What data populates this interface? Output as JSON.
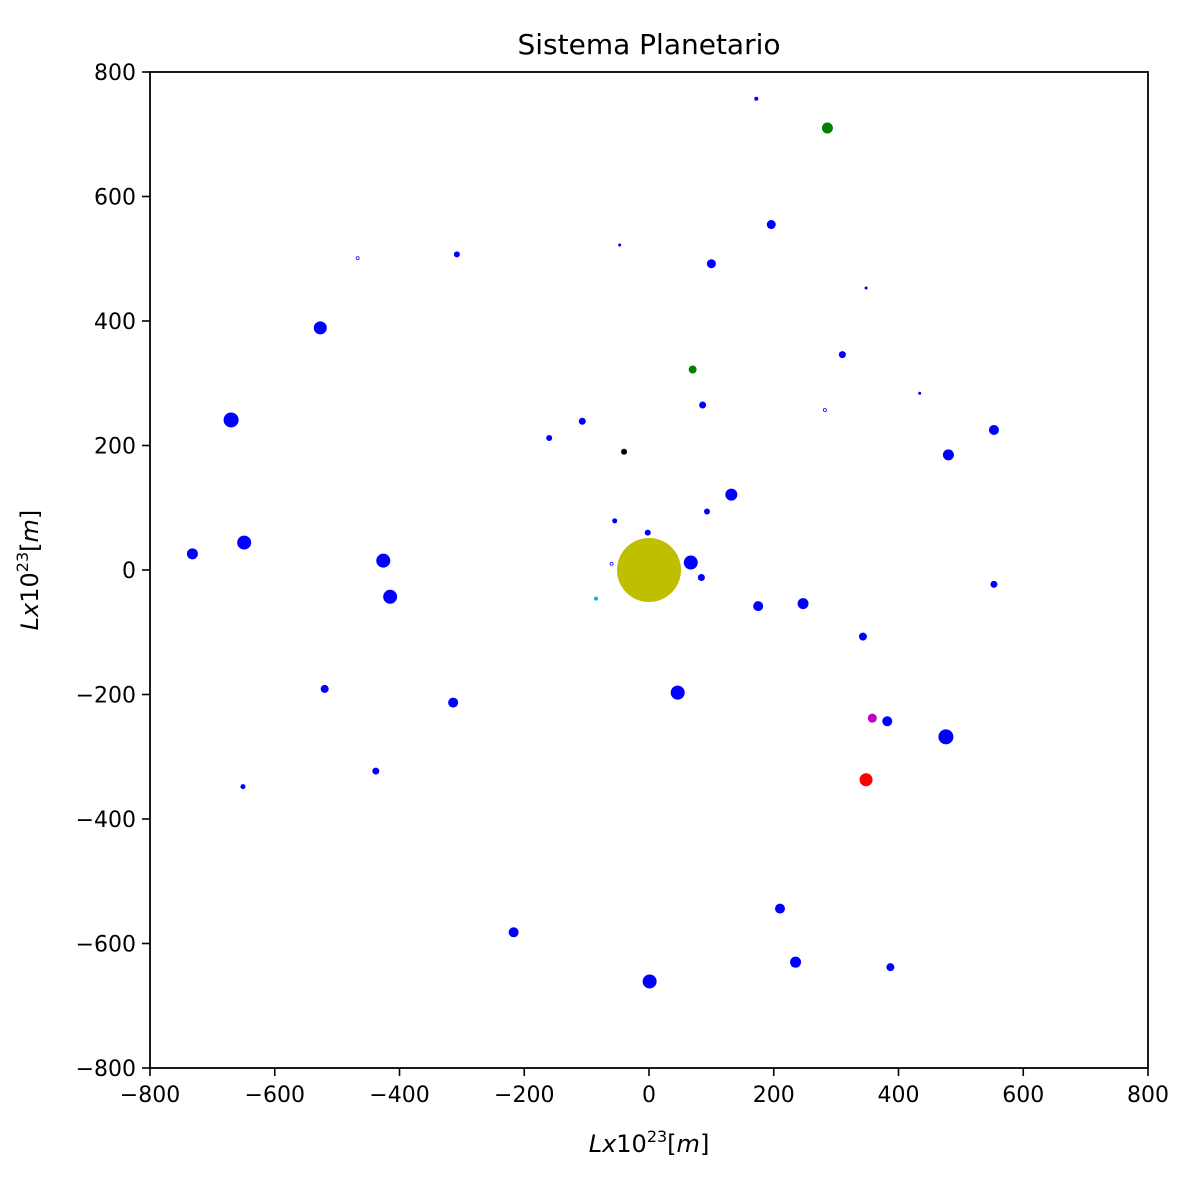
{
  "chart_data": {
    "type": "scatter",
    "title": "Sistema Planetario",
    "xlabel": {
      "base": "Lx10",
      "exp": "23",
      "unit": "[m]"
    },
    "ylabel": {
      "base": "Lx10",
      "exp": "23",
      "unit": "[m]"
    },
    "xlim": [
      -800,
      800
    ],
    "ylim": [
      -800,
      800
    ],
    "xticks": [
      -800,
      -600,
      -400,
      -200,
      0,
      200,
      400,
      600,
      800
    ],
    "yticks": [
      -800,
      -600,
      -400,
      -200,
      0,
      200,
      400,
      600,
      800
    ],
    "grid": false,
    "points": [
      {
        "x": 0,
        "y": 0,
        "r": 32,
        "color": "#bfbf00"
      },
      {
        "x": 286,
        "y": 710,
        "r": 5.5,
        "color": "#008000"
      },
      {
        "x": 70,
        "y": 322,
        "r": 4,
        "color": "#008000"
      },
      {
        "x": 348,
        "y": -337,
        "r": 6.5,
        "color": "#ff0000"
      },
      {
        "x": 358,
        "y": -238,
        "r": 4.5,
        "color": "#bf00bf"
      },
      {
        "x": -40,
        "y": 190,
        "r": 3,
        "color": "#000000"
      },
      {
        "x": -85,
        "y": -46,
        "r": 2,
        "color": "#00bfbf"
      },
      {
        "x": 172,
        "y": 757,
        "r": 2,
        "color": "#0000ff"
      },
      {
        "x": 196,
        "y": 555,
        "r": 4.5,
        "color": "#0000ff"
      },
      {
        "x": 100,
        "y": 492,
        "r": 4.5,
        "color": "#0000ff"
      },
      {
        "x": -308,
        "y": 507,
        "r": 3,
        "color": "#0000ff"
      },
      {
        "x": -47,
        "y": 522,
        "r": 1.5,
        "color": "#0000ff"
      },
      {
        "x": -467,
        "y": 501,
        "r": 1.5,
        "color": "#0000ff",
        "hollow": true
      },
      {
        "x": 348,
        "y": 453,
        "r": 1.5,
        "color": "#0000ff"
      },
      {
        "x": -527,
        "y": 389,
        "r": 6.5,
        "color": "#0000ff"
      },
      {
        "x": 310,
        "y": 346,
        "r": 3.5,
        "color": "#0000ff"
      },
      {
        "x": 434,
        "y": 284,
        "r": 1.5,
        "color": "#0000ff"
      },
      {
        "x": 282,
        "y": 257,
        "r": 1.5,
        "color": "#0000ff",
        "hollow": true
      },
      {
        "x": 86,
        "y": 265,
        "r": 3.5,
        "color": "#0000ff"
      },
      {
        "x": -107,
        "y": 239,
        "r": 3.5,
        "color": "#0000ff"
      },
      {
        "x": -160,
        "y": 212,
        "r": 3,
        "color": "#0000ff"
      },
      {
        "x": -670,
        "y": 241,
        "r": 7.5,
        "color": "#0000ff"
      },
      {
        "x": 553,
        "y": 225,
        "r": 5,
        "color": "#0000ff"
      },
      {
        "x": 480,
        "y": 185,
        "r": 5.5,
        "color": "#0000ff"
      },
      {
        "x": 132,
        "y": 121,
        "r": 6,
        "color": "#0000ff"
      },
      {
        "x": 93,
        "y": 94,
        "r": 3,
        "color": "#0000ff"
      },
      {
        "x": -55,
        "y": 79,
        "r": 2.5,
        "color": "#0000ff"
      },
      {
        "x": -2,
        "y": 60,
        "r": 3,
        "color": "#0000ff"
      },
      {
        "x": -732,
        "y": 26,
        "r": 5.5,
        "color": "#0000ff"
      },
      {
        "x": -649,
        "y": 44,
        "r": 7,
        "color": "#0000ff"
      },
      {
        "x": -426,
        "y": 15,
        "r": 7,
        "color": "#0000ff"
      },
      {
        "x": -415,
        "y": -43,
        "r": 7,
        "color": "#0000ff"
      },
      {
        "x": -60,
        "y": 10,
        "r": 1.5,
        "color": "#0000ff",
        "hollow": true
      },
      {
        "x": 67,
        "y": 12,
        "r": 7,
        "color": "#0000ff"
      },
      {
        "x": 84,
        "y": -12,
        "r": 3.5,
        "color": "#0000ff"
      },
      {
        "x": 553,
        "y": -23,
        "r": 3.5,
        "color": "#0000ff"
      },
      {
        "x": 175,
        "y": -58,
        "r": 5,
        "color": "#0000ff"
      },
      {
        "x": 247,
        "y": -54,
        "r": 5.5,
        "color": "#0000ff"
      },
      {
        "x": 343,
        "y": -107,
        "r": 4,
        "color": "#0000ff"
      },
      {
        "x": -520,
        "y": -191,
        "r": 4,
        "color": "#0000ff"
      },
      {
        "x": -314,
        "y": -213,
        "r": 5,
        "color": "#0000ff"
      },
      {
        "x": 46,
        "y": -197,
        "r": 7,
        "color": "#0000ff"
      },
      {
        "x": 382,
        "y": -243,
        "r": 5,
        "color": "#0000ff"
      },
      {
        "x": 476,
        "y": -268,
        "r": 7.5,
        "color": "#0000ff"
      },
      {
        "x": -438,
        "y": -323,
        "r": 3.5,
        "color": "#0000ff"
      },
      {
        "x": -651,
        "y": -348,
        "r": 2.5,
        "color": "#0000ff"
      },
      {
        "x": 210,
        "y": -544,
        "r": 5,
        "color": "#0000ff"
      },
      {
        "x": -217,
        "y": -582,
        "r": 5,
        "color": "#0000ff"
      },
      {
        "x": 235,
        "y": -630,
        "r": 5.5,
        "color": "#0000ff"
      },
      {
        "x": 387,
        "y": -638,
        "r": 4,
        "color": "#0000ff"
      },
      {
        "x": 1,
        "y": -661,
        "r": 7,
        "color": "#0000ff"
      }
    ]
  }
}
